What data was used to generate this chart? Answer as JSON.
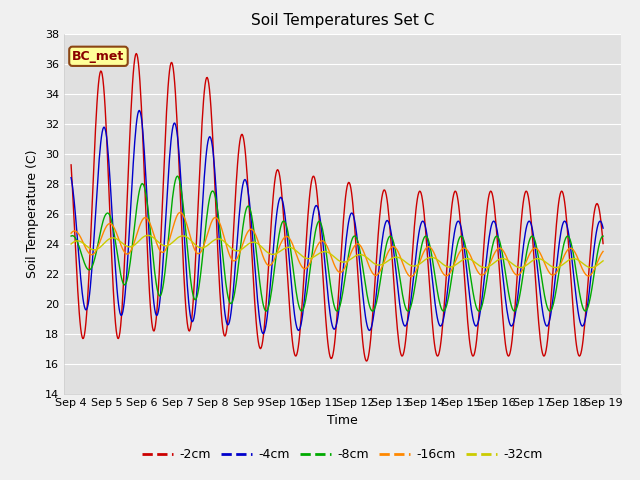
{
  "title": "Soil Temperatures Set C",
  "xlabel": "Time",
  "ylabel": "Soil Temperature (C)",
  "ylim": [
    14,
    38
  ],
  "yticks": [
    14,
    16,
    18,
    20,
    22,
    24,
    26,
    28,
    30,
    32,
    34,
    36,
    38
  ],
  "x_labels": [
    "Sep 4",
    "Sep 5",
    "Sep 6",
    "Sep 7",
    "Sep 8",
    "Sep 9",
    "Sep 10",
    "Sep 11",
    "Sep 12",
    "Sep 13",
    "Sep 14",
    "Sep 15",
    "Sep 16",
    "Sep 17",
    "Sep 18",
    "Sep 19"
  ],
  "annotation": "BC_met",
  "legend_labels": [
    "-2cm",
    "-4cm",
    "-8cm",
    "-16cm",
    "-32cm"
  ],
  "colors": [
    "#cc0000",
    "#0000cc",
    "#00aa00",
    "#ff8800",
    "#cccc00"
  ],
  "fig_bg": "#f0f0f0",
  "plot_bg": "#e0e0e0"
}
